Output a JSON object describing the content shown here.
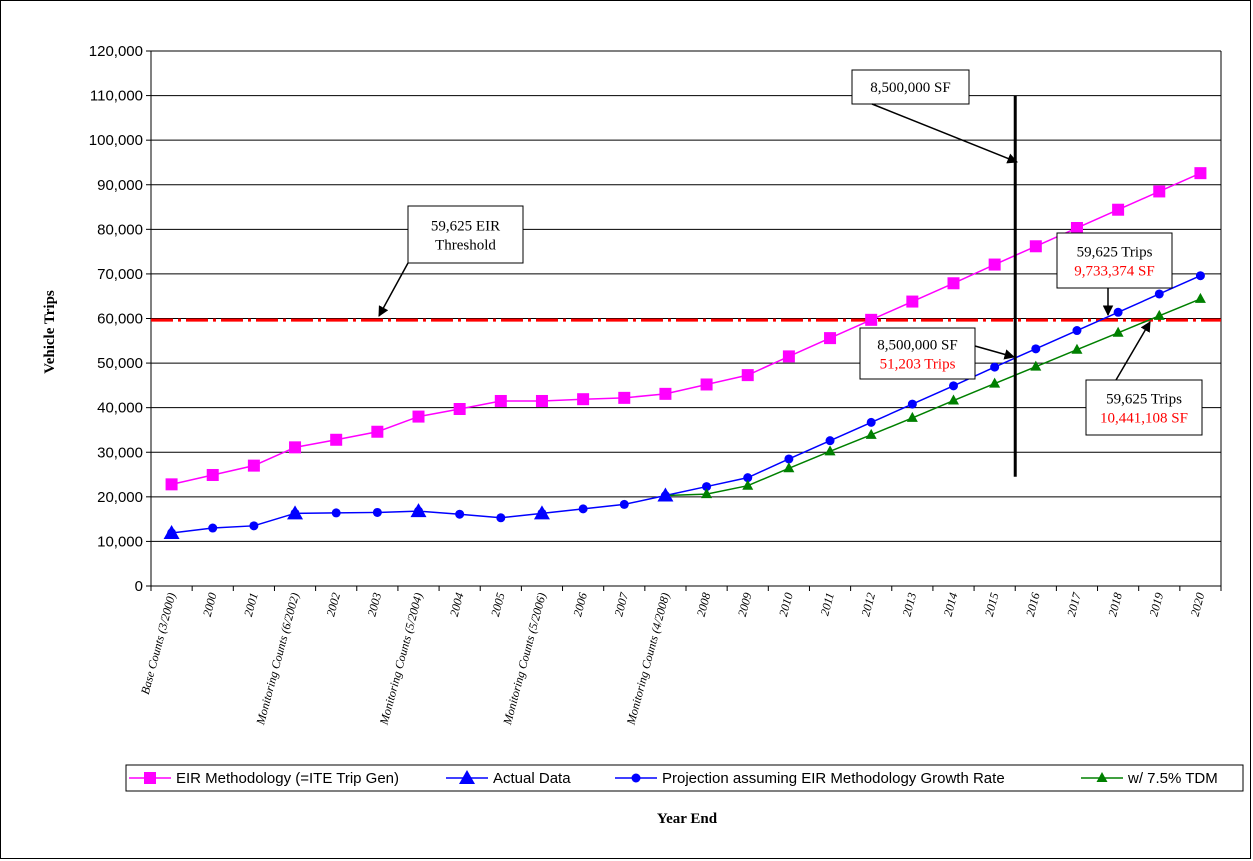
{
  "chart_data": {
    "type": "line",
    "title": "",
    "xlabel": "Year End",
    "ylabel": "Vehicle Trips",
    "ylim": [
      0,
      120000
    ],
    "y_ticks": [
      0,
      10000,
      20000,
      30000,
      40000,
      50000,
      60000,
      70000,
      80000,
      90000,
      100000,
      110000,
      120000
    ],
    "y_tick_labels": [
      "0",
      "10,000",
      "20,000",
      "30,000",
      "40,000",
      "50,000",
      "60,000",
      "70,000",
      "80,000",
      "90,000",
      "100,000",
      "110,000",
      "120,000"
    ],
    "grid": true,
    "legend_position": "bottom",
    "categories": [
      "Base Counts (3/2000)",
      "2000",
      "2001",
      "Monitoring Counts (6/2002)",
      "2002",
      "2003",
      "Monitoring Counts (5/2004)",
      "2004",
      "2005",
      "Monitoring Counts (5/2006)",
      "2006",
      "2007",
      "Monitoring Counts (4/2008)",
      "2008",
      "2009",
      "2010",
      "2011",
      "2012",
      "2013",
      "2014",
      "2015",
      "2016",
      "2017",
      "2018",
      "2019",
      "2020"
    ],
    "series": [
      {
        "name": "EIR Methodology (=ITE Trip Gen)",
        "color": "#ff00ff",
        "marker": "square",
        "values": [
          22800,
          24900,
          27000,
          31100,
          32800,
          34600,
          38000,
          39700,
          41500,
          41500,
          41900,
          42200,
          43100,
          45200,
          47300,
          51500,
          55600,
          59700,
          63800,
          67900,
          72100,
          76200,
          80300,
          84400,
          88500,
          92600
        ]
      },
      {
        "name": "Actual Data",
        "color": "#0000ff",
        "marker": "triangle",
        "values": [
          11900,
          null,
          null,
          16300,
          null,
          null,
          16800,
          null,
          null,
          16300,
          null,
          null,
          20300,
          null,
          null,
          null,
          null,
          null,
          null,
          null,
          null,
          null,
          null,
          null,
          null,
          null
        ]
      },
      {
        "name": "Projection assuming EIR Methodology Growth Rate",
        "color": "#0000ff",
        "marker": "circle",
        "values": [
          11900,
          13000,
          13500,
          16300,
          16400,
          16500,
          16800,
          16100,
          15300,
          16300,
          17300,
          18300,
          20300,
          22300,
          24300,
          28500,
          32600,
          36700,
          40800,
          44900,
          49100,
          53200,
          57300,
          61400,
          65500,
          69600
        ]
      },
      {
        "name": "w/ 7.5% TDM",
        "color": "#008000",
        "marker": "triangle-small",
        "values": [
          null,
          null,
          null,
          null,
          null,
          null,
          null,
          null,
          null,
          null,
          null,
          null,
          20300,
          20600,
          22500,
          26400,
          30200,
          33900,
          37700,
          41600,
          45400,
          49200,
          53000,
          56800,
          60600,
          64400
        ]
      }
    ],
    "threshold_line": {
      "value": 59625,
      "color": "#ff0000",
      "style": "dash-dot"
    },
    "vertical_marker": {
      "category": "2016",
      "y_from": 24500,
      "y_to": 110000
    },
    "annotations": {
      "eir_threshold": {
        "line1": "59,625 EIR",
        "line2": "Threshold"
      },
      "sf_top": {
        "line1": "8,500,000 SF"
      },
      "sf_mid": {
        "line1": "8,500,000 SF",
        "line2": "51,203 Trips"
      },
      "trips_proj": {
        "line1": "59,625 Trips",
        "line2": "9,733,374 SF"
      },
      "trips_tdm": {
        "line1": "59,625 Trips",
        "line2": "10,441,108 SF"
      }
    },
    "annotation_colors": {
      "primary": "#000000",
      "highlight": "#ff0000"
    }
  }
}
